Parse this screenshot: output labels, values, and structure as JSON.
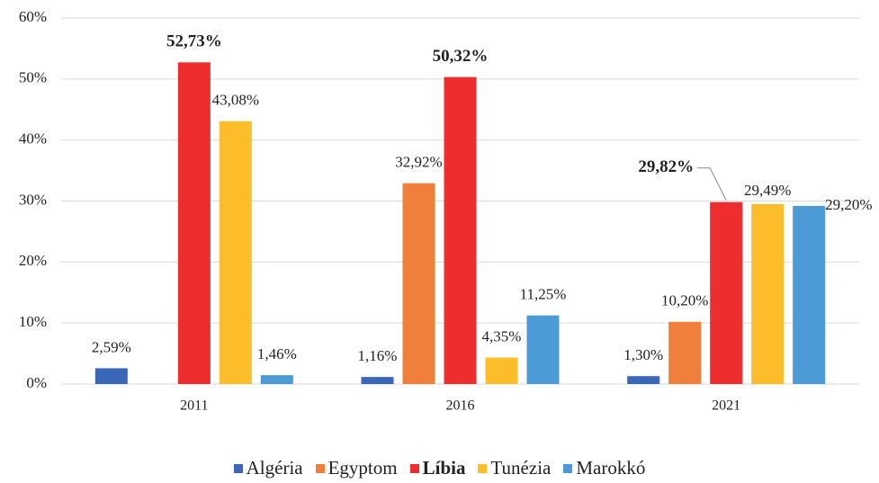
{
  "chart_data": {
    "type": "bar",
    "categories": [
      "2011",
      "2016",
      "2021"
    ],
    "series": [
      {
        "name": "Algéria",
        "color": "#3b67b9",
        "values": [
          2.59,
          1.16,
          1.3
        ],
        "value_labels": [
          "2,59%",
          "1,16%",
          "1,30%"
        ]
      },
      {
        "name": "Egyptom",
        "color": "#f07f3c",
        "values": [
          null,
          32.92,
          10.2
        ],
        "value_labels": [
          null,
          "32,92%",
          "10,20%"
        ]
      },
      {
        "name": "Líbia",
        "color": "#ee2e2e",
        "bold": true,
        "values": [
          52.73,
          50.32,
          29.82
        ],
        "value_labels": [
          "52,73%",
          "50,32%",
          "29,82%"
        ]
      },
      {
        "name": "Tunézia",
        "color": "#fbbd2a",
        "values": [
          43.08,
          4.35,
          29.49
        ],
        "value_labels": [
          "43,08%",
          "4,35%",
          "29,49%"
        ]
      },
      {
        "name": "Marokkó",
        "color": "#4c9ad6",
        "values": [
          1.46,
          11.25,
          29.2
        ],
        "value_labels": [
          "1,46%",
          "11,25%",
          "29,20%"
        ]
      }
    ],
    "ylim": [
      0,
      60
    ],
    "yticks": [
      {
        "value": 0,
        "label": "0%"
      },
      {
        "value": 10,
        "label": "10%"
      },
      {
        "value": 20,
        "label": "20%"
      },
      {
        "value": 30,
        "label": "30%"
      },
      {
        "value": 40,
        "label": "40%"
      },
      {
        "value": 50,
        "label": "50%"
      },
      {
        "value": 60,
        "label": "60%"
      }
    ],
    "grid": true,
    "legend": "bottom"
  }
}
